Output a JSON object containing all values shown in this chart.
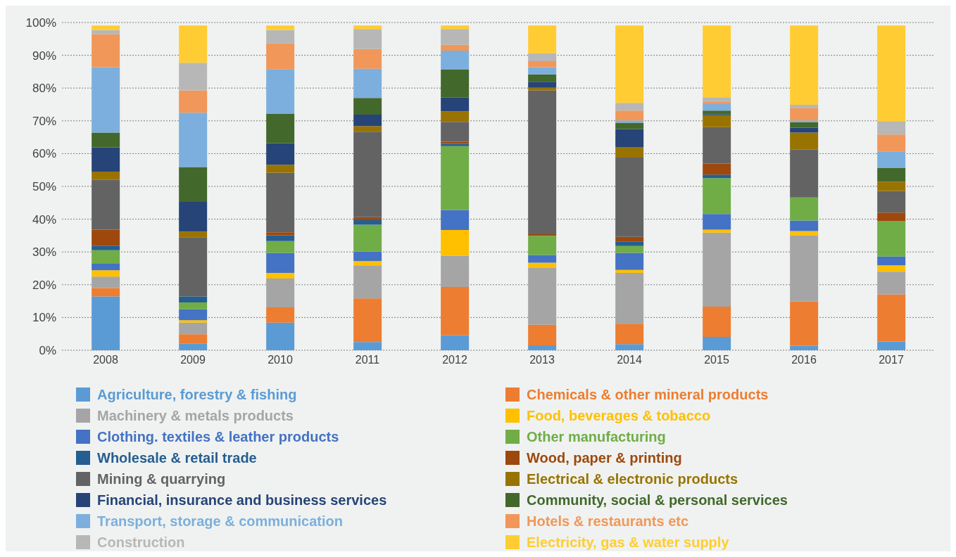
{
  "chart_data": {
    "type": "bar",
    "stacked": true,
    "categories": [
      "2008",
      "2009",
      "2010",
      "2011",
      "2012",
      "2013",
      "2014",
      "2015",
      "2016",
      "2017"
    ],
    "ylim": [
      0,
      100
    ],
    "yticks": [
      {
        "value": 0,
        "label": "0%"
      },
      {
        "value": 10,
        "label": "10%"
      },
      {
        "value": 20,
        "label": "20%"
      },
      {
        "value": 30,
        "label": "30%"
      },
      {
        "value": 40,
        "label": "40%"
      },
      {
        "value": 50,
        "label": "50%"
      },
      {
        "value": 60,
        "label": "60%"
      },
      {
        "value": 70,
        "label": "70%"
      },
      {
        "value": 80,
        "label": "80%"
      },
      {
        "value": 90,
        "label": "90%"
      },
      {
        "value": 100,
        "label": "100%"
      }
    ],
    "grid": "y",
    "legend": "bottom",
    "series": [
      {
        "name": "Agriculture, forestry & fishing",
        "color": "#5b9bd5",
        "values": [
          16.4,
          2.0,
          8.4,
          2.5,
          4.6,
          1.5,
          1.9,
          4.1,
          1.4,
          2.7
        ]
      },
      {
        "name": "Chemicals & other mineral products",
        "color": "#ed7d31",
        "values": [
          2.6,
          2.9,
          4.7,
          13.3,
          14.7,
          6.3,
          6.2,
          9.2,
          13.5,
          14.3
        ]
      },
      {
        "name": "Machinery & metals products",
        "color": "#a5a5a5",
        "values": [
          3.5,
          3.5,
          8.8,
          10.1,
          9.5,
          17.3,
          15.5,
          22.6,
          20.2,
          7.0
        ]
      },
      {
        "name": "Food, beverages & tobacco",
        "color": "#ffc000",
        "values": [
          1.9,
          0.8,
          1.7,
          1.3,
          7.9,
          1.6,
          0.9,
          0.9,
          1.3,
          1.9
        ]
      },
      {
        "name": "Clothing. textiles & leather products",
        "color": "#4472c4",
        "values": [
          2.0,
          3.3,
          6.1,
          2.9,
          6.1,
          2.4,
          5.2,
          4.8,
          3.2,
          2.7
        ]
      },
      {
        "name": "Other manufacturing",
        "color": "#70ad47",
        "values": [
          4.1,
          2.1,
          3.6,
          8.2,
          19.5,
          5.8,
          2.1,
          10.9,
          7.0,
          10.8
        ]
      },
      {
        "name": "Wholesale & retail trade",
        "color": "#255e91",
        "values": [
          1.4,
          1.8,
          1.8,
          1.4,
          0.7,
          0,
          1.4,
          1.1,
          0,
          0
        ]
      },
      {
        "name": "Wood, paper & printing",
        "color": "#9e480e",
        "values": [
          4.9,
          0,
          0.9,
          0.9,
          0.6,
          0.5,
          1.4,
          3.4,
          0,
          2.6
        ]
      },
      {
        "name": "Mining & quarrying",
        "color": "#636363",
        "values": [
          15.2,
          18.1,
          18.2,
          26.1,
          6.1,
          43.9,
          24.2,
          11.1,
          14.6,
          6.6
        ]
      },
      {
        "name": "Electrical & electronic products",
        "color": "#997300",
        "values": [
          2.5,
          1.7,
          2.4,
          1.7,
          3.2,
          0.8,
          3.2,
          3.5,
          5.2,
          2.8
        ]
      },
      {
        "name": "Financial, insurance and business services",
        "color": "#264478",
        "values": [
          7.4,
          9.1,
          6.6,
          3.5,
          4.2,
          1.8,
          5.5,
          0.4,
          1.5,
          0
        ]
      },
      {
        "name": "Community, social & personal services",
        "color": "#43682b",
        "values": [
          4.5,
          10.6,
          9.0,
          5.1,
          8.5,
          2.3,
          1.9,
          1.1,
          1.7,
          4.3
        ]
      },
      {
        "name": "Transport, storage & communication",
        "color": "#7cafdd",
        "values": [
          20.0,
          16.6,
          13.6,
          8.9,
          5.8,
          2.2,
          0.7,
          2.0,
          0.5,
          5.0
        ]
      },
      {
        "name": "Hotels & restaurants etc",
        "color": "#f1975a",
        "values": [
          10.0,
          6.8,
          7.8,
          6.0,
          1.8,
          1.8,
          3.0,
          0.8,
          3.7,
          5.1
        ]
      },
      {
        "name": "Construction",
        "color": "#b7b7b7",
        "values": [
          1.3,
          8.4,
          4.1,
          6.1,
          4.8,
          2.4,
          2.4,
          1.3,
          1.1,
          4.1
        ]
      },
      {
        "name": "Electricity, gas & water supply",
        "color": "#ffcd33",
        "values": [
          1.4,
          11.4,
          1.4,
          1.1,
          1.1,
          8.5,
          23.6,
          21.9,
          24.2,
          29.2
        ]
      }
    ]
  }
}
